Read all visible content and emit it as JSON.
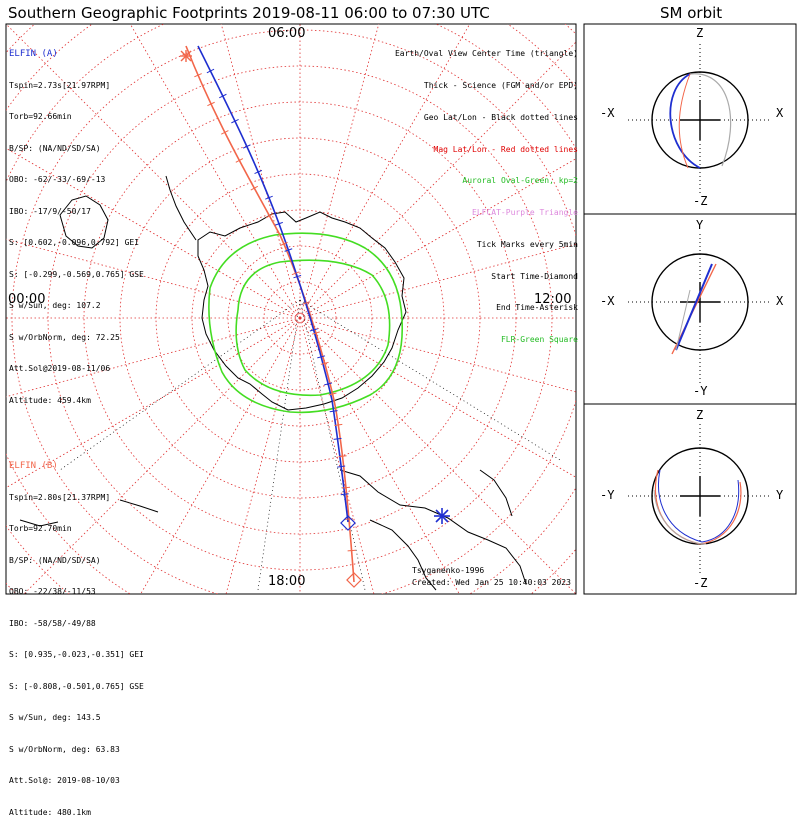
{
  "title": "Southern Geographic Footprints 2019-08-11 06:00 to 07:30 UTC",
  "sm_title": "SM orbit",
  "colors": {
    "elfin_a": "#1f2fd0",
    "elfin_b": "#f2664a",
    "aurora": "#44dd22",
    "grid": "#e03030"
  },
  "elfin_a": {
    "name": "ELFIN (A)",
    "lines": [
      "Tspin=2.73s[21.97RPM]",
      "Torb=92.66min",
      "B/SP: (NA/ND/SD/SA)",
      "OBO: -62/-33/-69/-13",
      "IBO: -17/9/-50/17",
      "S: [0.602,-0.096,0.792] GEI",
      "S: [-0.299,-0.569,0.765] GSE",
      "S w/Sun, deg: 107.2",
      "S w/OrbNorm, deg: 72.25",
      "Att.Sol@2019-08-11/06",
      "Altitude: 459.4km"
    ]
  },
  "elfin_b": {
    "name": "ELFIN (B)",
    "lines": [
      "Tspin=2.80s[21.37RPM]",
      "Torb=92.70min",
      "B/SP: (NA/ND/SD/SA)",
      "OBO: -22/38/-11/53",
      "IBO: -58/58/-49/88",
      "S: [0.935,-0.023,-0.351] GEI",
      "S: [-0.808,-0.501,0.765] GSE",
      "S w/Sun, deg: 143.5",
      "S w/OrbNorm, deg: 63.83",
      "Att.Sol@: 2019-08-10/03",
      "Altitude: 480.1km"
    ]
  },
  "legend": [
    {
      "text": "Earth/Oval View Center Time (triangle)",
      "color": "#000000"
    },
    {
      "text": "Thick - Science (FGM and/or EPD)",
      "color": "#000000"
    },
    {
      "text": "Geo Lat/Lon - Black dotted lines",
      "color": "#000000"
    },
    {
      "text": "Mag Lat/Lon - Red dotted lines",
      "color": "#e00000"
    },
    {
      "text": "Auroral Oval-Green, kp=2",
      "color": "#22bb22"
    },
    {
      "text": "ELFCAT-Purple Triangle",
      "color": "#dd88dd"
    },
    {
      "text": "Tick Marks every 5min",
      "color": "#000000"
    },
    {
      "text": "Start Time-Diamond",
      "color": "#000000"
    },
    {
      "text": "End Time-Asterisk",
      "color": "#000000"
    },
    {
      "text": "FLR-Green Square",
      "color": "#22bb22"
    }
  ],
  "clock": {
    "top": "06:00",
    "left": "00:00",
    "right": "12:00",
    "bottom": "18:00"
  },
  "credits": {
    "model": "Tsyganenko-1996",
    "created": "Created: Wed Jan 25 10:40:03 2023"
  },
  "sm_panels": [
    {
      "top": "Z",
      "bottom": "-Z",
      "left": "-X",
      "right": "X"
    },
    {
      "top": "Y",
      "bottom": "-Y",
      "left": "-X",
      "right": "X"
    },
    {
      "top": "Z",
      "bottom": "-Z",
      "left": "-Y",
      "right": "Y"
    }
  ]
}
